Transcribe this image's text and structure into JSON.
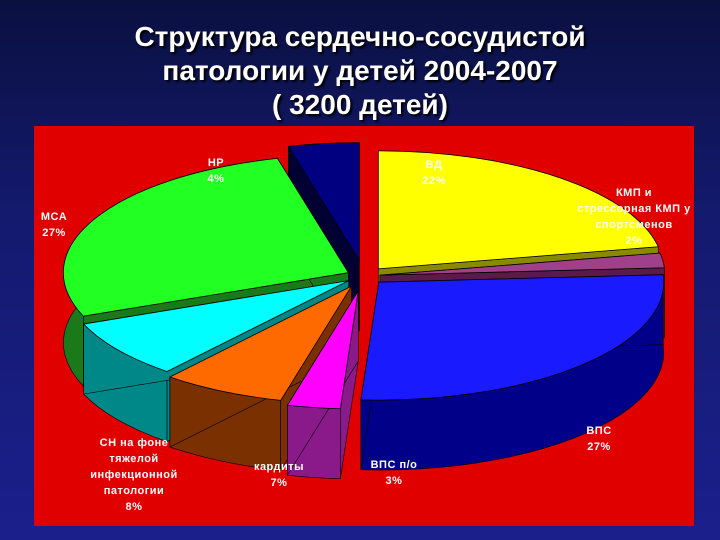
{
  "title": {
    "line1": "Структура сердечно-сосудистой",
    "line2": "патологии у детей 2004-2007",
    "line3": "( 3200 детей)"
  },
  "colors": {
    "background": "#1a1f8c",
    "chart_area": "#e00000"
  },
  "chart_data": {
    "type": "pie",
    "style": "3d-exploded",
    "title": "Структура сердечно-сосудистой патологии у детей 2004-2007 ( 3200 детей)",
    "slices": [
      {
        "key": "vd",
        "label_lines": [
          "ВД",
          "22%"
        ],
        "value": 22,
        "color": "#ffff00",
        "side": "#8a8a00"
      },
      {
        "key": "kmp",
        "label_lines": [
          "КМП и",
          "стрессорная КМП у",
          "спортсменов",
          "2%"
        ],
        "value": 2,
        "color": "#a0408a",
        "side": "#5a1a4a"
      },
      {
        "key": "vps",
        "label_lines": [
          "ВПС",
          "27%"
        ],
        "value": 27,
        "color": "#1a1aff",
        "side": "#000088"
      },
      {
        "key": "vpso",
        "label_lines": [
          "ВПС п/о",
          "3%"
        ],
        "value": 3,
        "color": "#ff00ff",
        "side": "#8a1a8a"
      },
      {
        "key": "kard",
        "label_lines": [
          "кардиты",
          "7%"
        ],
        "value": 7,
        "color": "#ff6a00",
        "side": "#7a3000"
      },
      {
        "key": "sn",
        "label_lines": [
          "СН на фоне",
          "тяжелой",
          "инфекционной",
          "патологии",
          "8%"
        ],
        "value": 8,
        "color": "#00ffff",
        "side": "#008888"
      },
      {
        "key": "msa",
        "label_lines": [
          "МСА",
          "27%"
        ],
        "value": 27,
        "color": "#22ff22",
        "side": "#1a7a1a"
      },
      {
        "key": "nr",
        "label_lines": [
          "НР",
          "4%"
        ],
        "value": 4,
        "color": "#000080",
        "side": "#000033"
      }
    ]
  }
}
